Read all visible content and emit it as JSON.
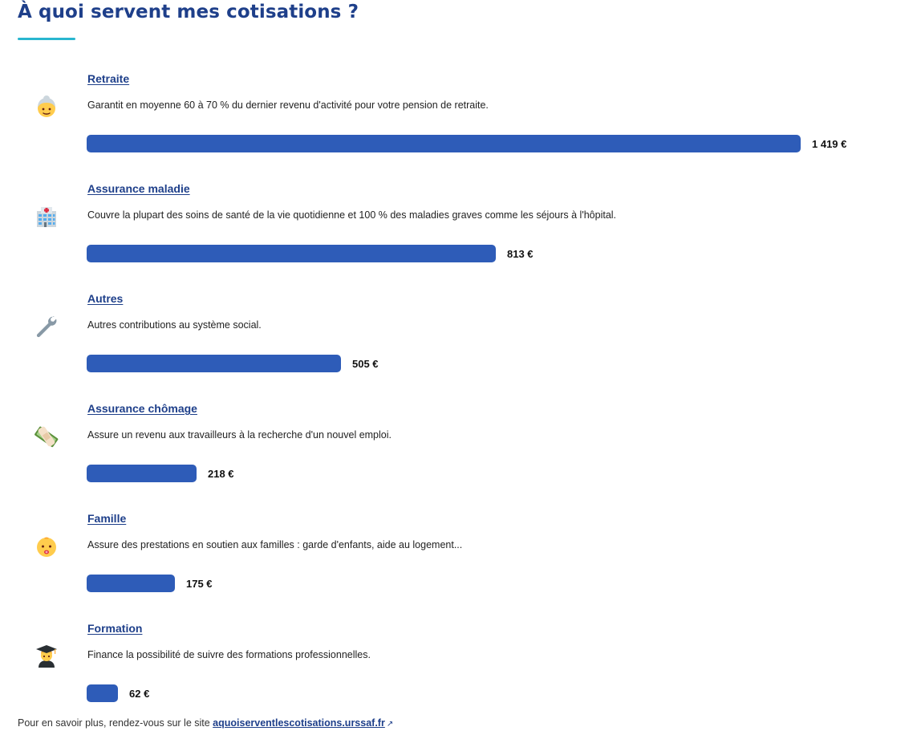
{
  "page": {
    "title": "À quoi servent mes cotisations ?"
  },
  "accent_color": "#29b6cf",
  "bar_color": "#2e5cb8",
  "items": [
    {
      "icon": "older-person-icon",
      "title": "Retraite",
      "description": "Garantit en moyenne 60 à 70 % du dernier revenu d'activité pour votre pension de retraite.",
      "amount": 1419,
      "amount_label": "1 419 €"
    },
    {
      "icon": "hospital-icon",
      "title": "Assurance maladie",
      "description": "Couvre la plupart des soins de santé de la vie quotidienne et 100 % des maladies graves comme les séjours à l'hôpital.",
      "amount": 813,
      "amount_label": "813 €"
    },
    {
      "icon": "wrench-icon",
      "title": "Autres",
      "description": "Autres contributions au système social.",
      "amount": 505,
      "amount_label": "505 €"
    },
    {
      "icon": "money-bandage-icon",
      "title": "Assurance chômage",
      "description": "Assure un revenu aux travailleurs à la recherche d'un nouvel emploi.",
      "amount": 218,
      "amount_label": "218 €"
    },
    {
      "icon": "baby-icon",
      "title": "Famille",
      "description": "Assure des prestations en soutien aux familles : garde d'enfants, aide au logement...",
      "amount": 175,
      "amount_label": "175 €"
    },
    {
      "icon": "student-icon",
      "title": "Formation",
      "description": "Finance la possibilité de suivre des formations professionnelles.",
      "amount": 62,
      "amount_label": "62 €"
    }
  ],
  "footer": {
    "text": "Pour en savoir plus, rendez-vous sur le site ",
    "link_label": "aquoiserventlescotisations.urssaf.fr",
    "link_icon": "external-link-icon"
  }
}
